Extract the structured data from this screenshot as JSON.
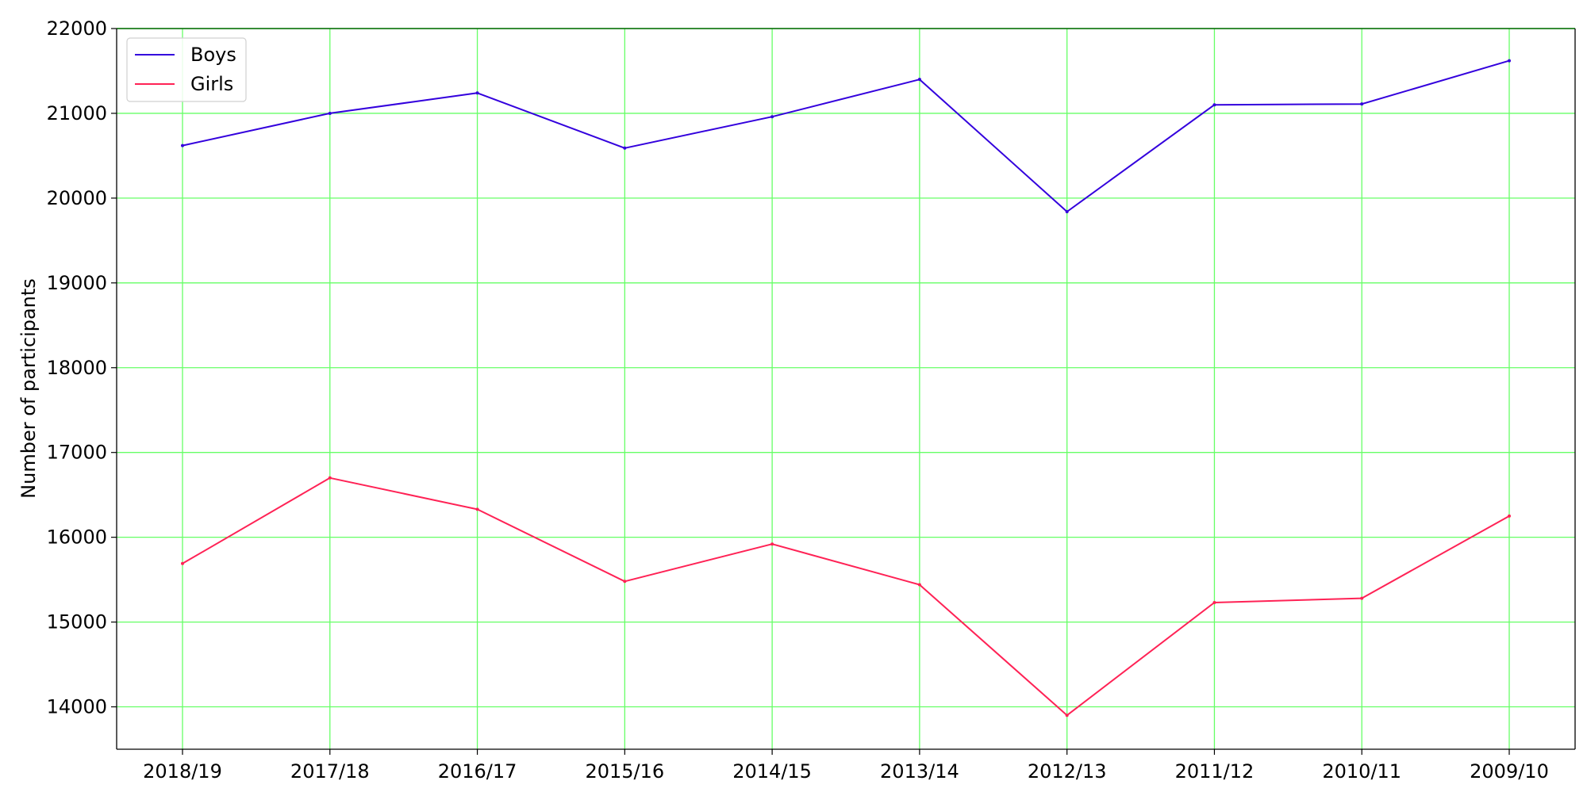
{
  "chart_data": {
    "type": "line",
    "title": "",
    "xlabel": "",
    "ylabel": "Number of participants",
    "categories": [
      "2018/19",
      "2017/18",
      "2016/17",
      "2015/16",
      "2014/15",
      "2013/14",
      "2012/13",
      "2011/12",
      "2010/11",
      "2009/10"
    ],
    "ylim": [
      13500,
      22000
    ],
    "yticks": [
      14000,
      15000,
      16000,
      17000,
      18000,
      19000,
      20000,
      21000,
      22000
    ],
    "grid": true,
    "legend_position": "top-left",
    "series": [
      {
        "name": "Boys",
        "color": "#3300dd",
        "values": [
          20620,
          21000,
          21240,
          20590,
          20960,
          21400,
          19840,
          21100,
          21110,
          21620
        ]
      },
      {
        "name": "Girls",
        "color": "#ff2255",
        "values": [
          15690,
          16700,
          16330,
          15480,
          15920,
          15440,
          13900,
          15230,
          15280,
          16250
        ]
      }
    ],
    "grid_color": "#66ff66",
    "axis_color": "#000000",
    "top_spine_color": "#006600"
  }
}
